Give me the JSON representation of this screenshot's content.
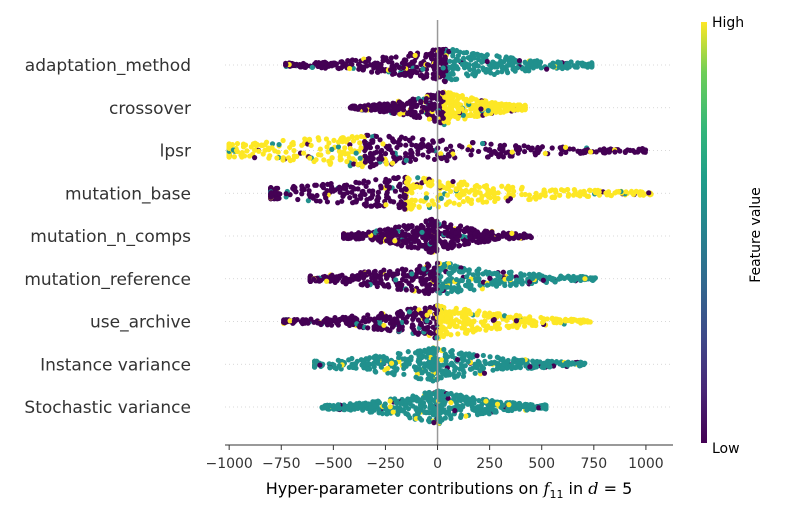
{
  "chart_data": {
    "type": "scatter",
    "subtype": "beeswarm-summary",
    "title": "",
    "xlabel": {
      "prefix": "Hyper-parameter contributions on ",
      "sym": "f",
      "sub": "11",
      "mid": " in ",
      "d": "d",
      "eq": " = 5"
    },
    "xlim": [
      -1020,
      1130
    ],
    "xticks": [
      -1000,
      -750,
      -500,
      -250,
      0,
      250,
      500,
      750,
      1000
    ],
    "xtick_labels": [
      "−1000",
      "−750",
      "−500",
      "−250",
      "0",
      "250",
      "500",
      "750",
      "1000"
    ],
    "zero_line": 0,
    "colorbar": {
      "label": "Feature value",
      "high": "High",
      "low": "Low",
      "colormap": "viridis"
    },
    "colors": {
      "low": "#440154",
      "mid": "#21908d",
      "high": "#fde725"
    },
    "features": [
      {
        "name": "adaptation_method",
        "min": -740,
        "max": 740,
        "peak": 40,
        "left_color": "low",
        "right_color": "mid"
      },
      {
        "name": "crossover",
        "min": -420,
        "max": 420,
        "peak": 30,
        "left_color": "low",
        "right_color": "high"
      },
      {
        "name": "lpsr",
        "min": -1000,
        "max": 1000,
        "peak": -350,
        "left_color": "high",
        "right_color": "low"
      },
      {
        "name": "mutation_base",
        "min": -800,
        "max": 1030,
        "peak": -150,
        "left_color": "low",
        "right_color": "high"
      },
      {
        "name": "mutation_n_comps",
        "min": -450,
        "max": 450,
        "peak": -30,
        "left_color": "low",
        "right_color": "low"
      },
      {
        "name": "mutation_reference",
        "min": -610,
        "max": 760,
        "peak": 0,
        "left_color": "low",
        "right_color": "mid"
      },
      {
        "name": "use_archive",
        "min": -740,
        "max": 740,
        "peak": 0,
        "left_color": "low",
        "right_color": "high"
      },
      {
        "name": "Instance variance",
        "min": -590,
        "max": 710,
        "peak": -20,
        "left_color": "mid",
        "right_color": "mid"
      },
      {
        "name": "Stochastic variance",
        "min": -560,
        "max": 520,
        "peak": 0,
        "left_color": "mid",
        "right_color": "mid"
      }
    ]
  }
}
